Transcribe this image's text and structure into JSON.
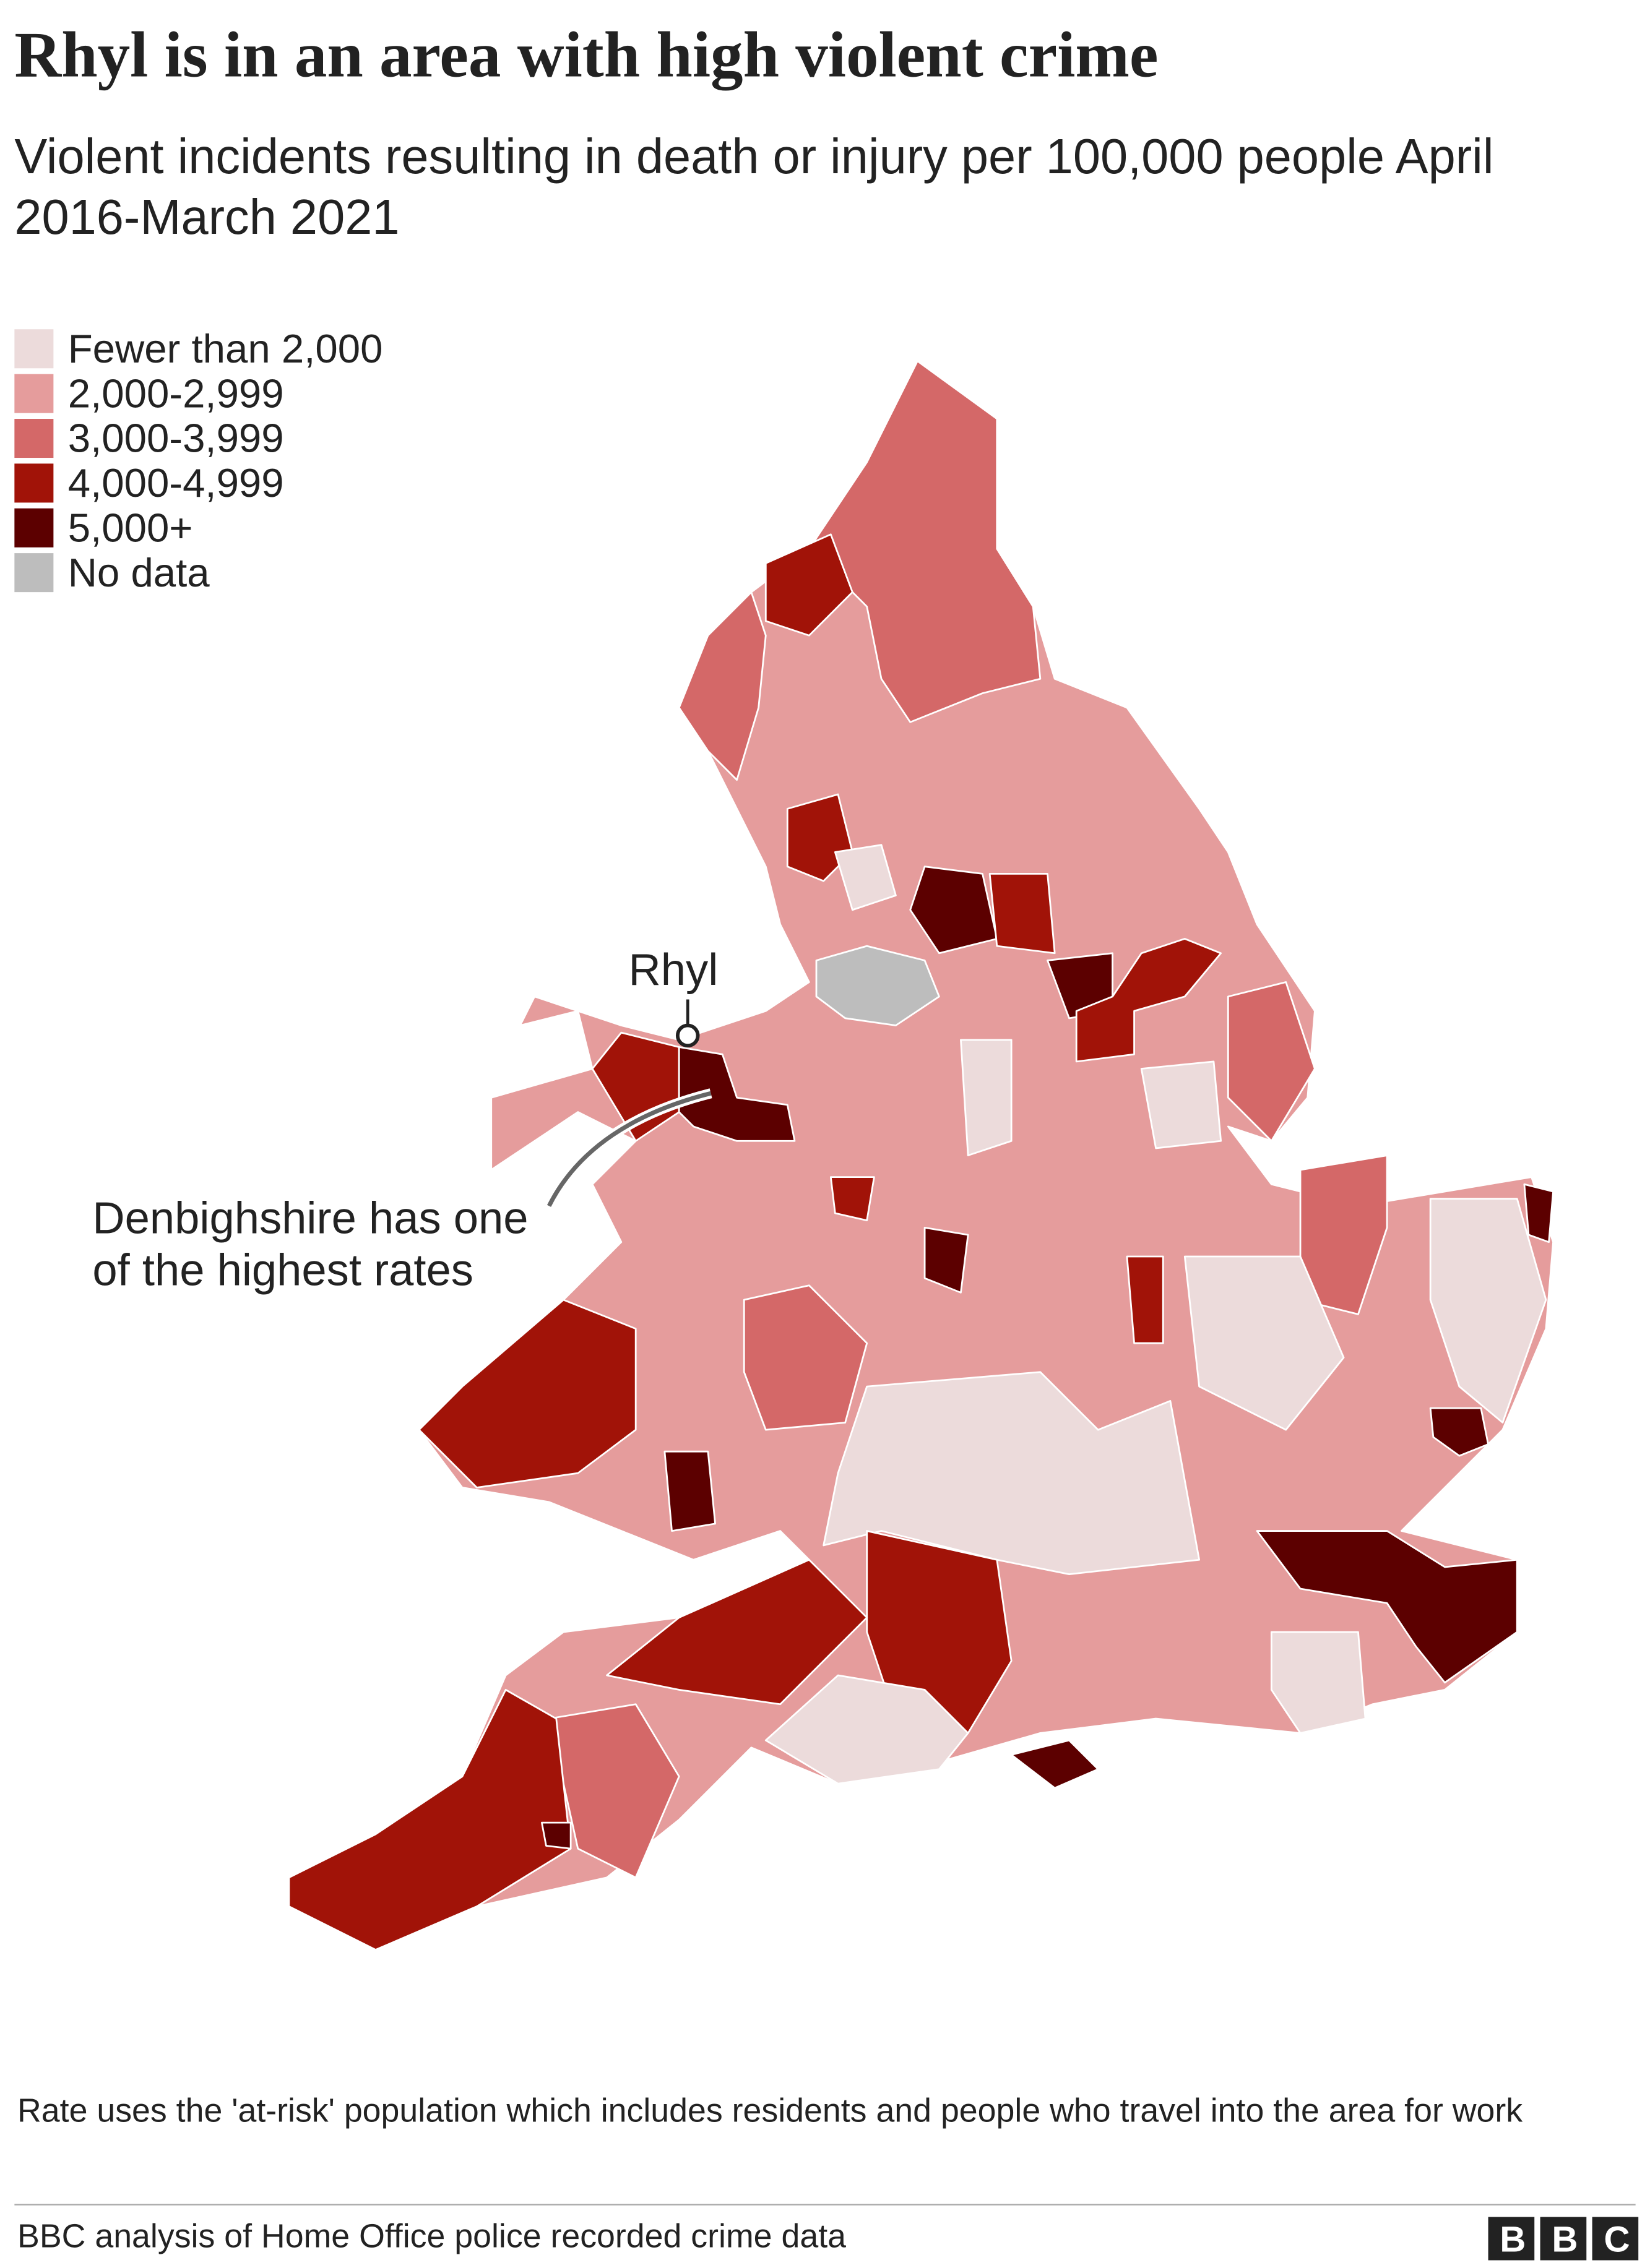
{
  "title": "Rhyl is in an area with high violent crime",
  "subtitle": "Violent incidents resulting in death or injury per 100,000 people April 2016-March 2021",
  "legend": [
    {
      "label": "Fewer than 2,000",
      "color": "#ecdbdb"
    },
    {
      "label": "2,000-2,999",
      "color": "#e59c9c"
    },
    {
      "label": "3,000-3,999",
      "color": "#d46868"
    },
    {
      "label": "4,000-4,999",
      "color": "#a11308"
    },
    {
      "label": "5,000+",
      "color": "#5c0000"
    },
    {
      "label": "No data",
      "color": "#bdbdbd"
    }
  ],
  "annotations": {
    "place": "Rhyl",
    "note": "Denbighshire has one of the highest rates"
  },
  "footnote": "Rate uses the 'at-risk' population which includes residents and people who travel into the area for work",
  "source": "BBC analysis of Home Office police recorded crime data",
  "logo": "BBC"
}
